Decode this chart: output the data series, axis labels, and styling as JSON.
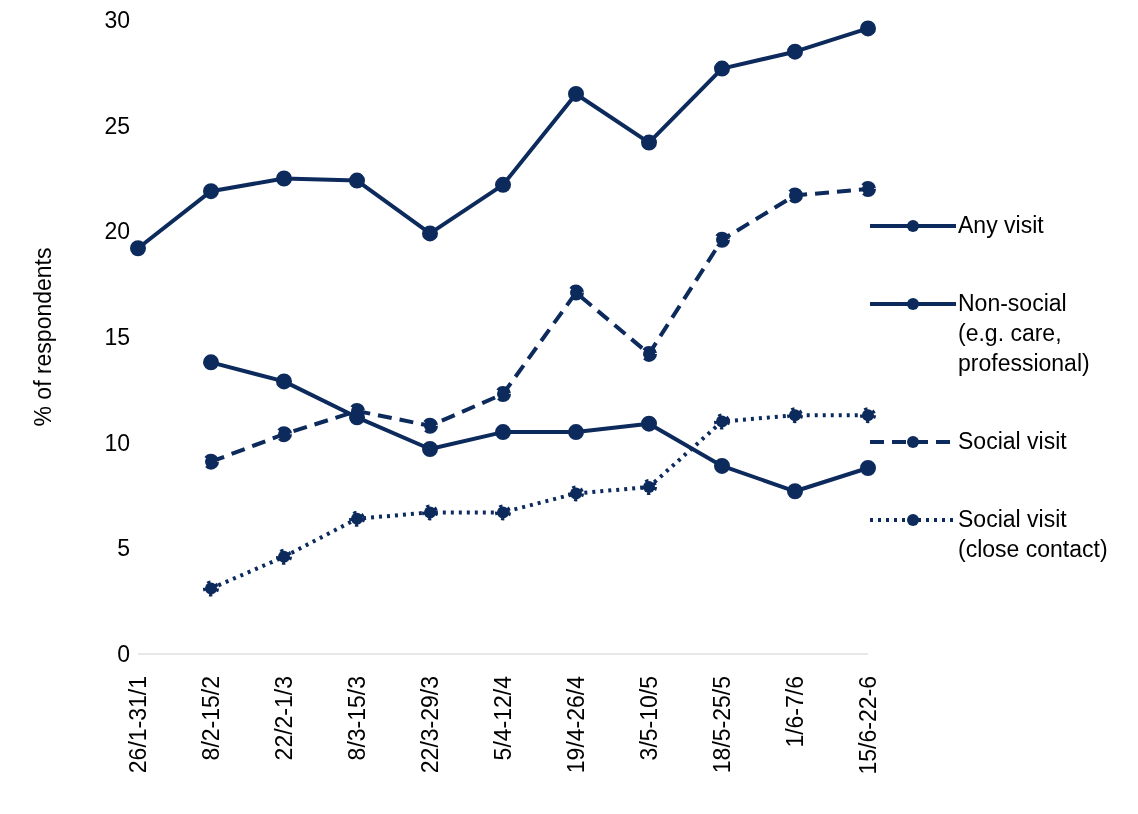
{
  "chart_data": {
    "type": "line",
    "ylabel": "% of respondents",
    "categories": [
      "26/1-31/1",
      "8/2-15/2",
      "22/2-1/3",
      "8/3-15/3",
      "22/3-29/3",
      "5/4-12/4",
      "19/4-26/4",
      "3/5-10/5",
      "18/5-25/5",
      "1/6-7/6",
      "15/6-22-6"
    ],
    "series": [
      {
        "name": "Any visit",
        "color": "#0d2a5c",
        "line_style": "solid",
        "values": [
          19.2,
          21.9,
          22.5,
          22.4,
          19.9,
          22.2,
          26.5,
          24.2,
          27.7,
          28.5,
          29.6
        ]
      },
      {
        "name": "Non-social (e.g. care, professional)",
        "color": "#0d2a5c",
        "line_style": "solid",
        "values": [
          null,
          13.8,
          12.9,
          11.2,
          9.7,
          10.5,
          10.5,
          10.9,
          8.9,
          7.7,
          8.8
        ]
      },
      {
        "name": "Social visit",
        "color": "#0d2a5c",
        "line_style": "dashed",
        "values": [
          null,
          9.1,
          10.4,
          11.5,
          10.8,
          12.3,
          17.1,
          14.2,
          19.6,
          21.7,
          22.0
        ]
      },
      {
        "name": "Social visit (close contact)",
        "color": "#0d2a5c",
        "line_style": "dotted",
        "values": [
          null,
          3.1,
          4.6,
          6.4,
          6.7,
          6.7,
          7.6,
          7.9,
          11.0,
          11.3,
          11.3
        ]
      }
    ],
    "ylim": [
      0,
      30
    ],
    "yticks": [
      0,
      5,
      10,
      15,
      20,
      25,
      30
    ],
    "legend": "right",
    "marker": "circle"
  }
}
